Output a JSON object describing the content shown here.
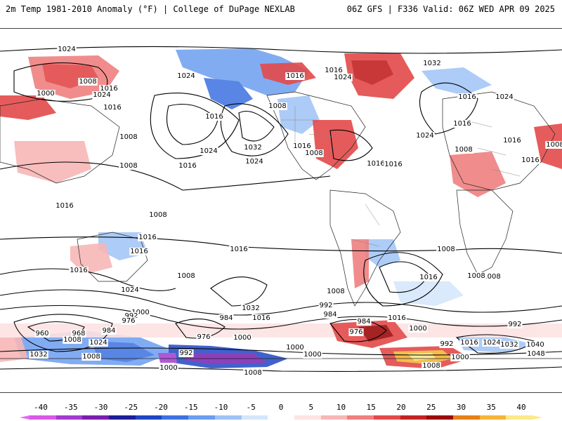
{
  "header": {
    "left_title": "2m Temp 1981-2010 Anomaly (°F) | College of DuPage NEXLAB",
    "right_title": "06Z GFS | F336 Valid: 06Z WED APR 09 2025"
  },
  "colorbar": {
    "ticks": [
      "-40",
      "-35",
      "-30",
      "-25",
      "-20",
      "-15",
      "-10",
      "-5",
      "0",
      "5",
      "10",
      "15",
      "20",
      "25",
      "30",
      "35",
      "40"
    ],
    "colors": [
      "#d95ae6",
      "#a23bd1",
      "#7a1fb0",
      "#1c1f9a",
      "#1f47c2",
      "#3d72e0",
      "#6c9ef0",
      "#9fc3f6",
      "#d4e6fb",
      "#ffffff",
      "#fde3e3",
      "#f8b6b6",
      "#f08080",
      "#e34a4a",
      "#c42323",
      "#9b0d0d",
      "#e6801a",
      "#f5b53a",
      "#fbe98a"
    ],
    "left_extend_color": "#e36cf2",
    "right_extend_color": "#fbe98a"
  },
  "map": {
    "ocean_color": "#ffffff",
    "warm_color": "#e85a5a",
    "cold_color": "#4d7fe6",
    "isobar_labels": [
      "1024",
      "1008",
      "1016",
      "1000",
      "1024",
      "1016",
      "1024",
      "1016",
      "1016",
      "1024",
      "1032",
      "1008",
      "1016",
      "1008",
      "1016",
      "1016",
      "1024",
      "1032",
      "1024",
      "1016",
      "1016",
      "1016",
      "1024",
      "1016",
      "1024",
      "1008",
      "1008",
      "1016",
      "1016",
      "1008",
      "1008",
      "1008",
      "1016",
      "1016",
      "1016",
      "1008",
      "1016",
      "1024",
      "1016",
      "1008",
      "1008",
      "1000",
      "1032",
      "992",
      "984",
      "1016",
      "1016",
      "1008",
      "1016",
      "1008",
      "976",
      "992",
      "984",
      "1000",
      "1024",
      "992",
      "1000",
      "960",
      "968",
      "1008",
      "1032",
      "1008",
      "976",
      "1000",
      "992",
      "984",
      "1000",
      "976",
      "984",
      "992",
      "1016",
      "1024",
      "1032",
      "1040",
      "1048",
      "1008",
      "1000",
      "1000",
      "1008"
    ]
  }
}
